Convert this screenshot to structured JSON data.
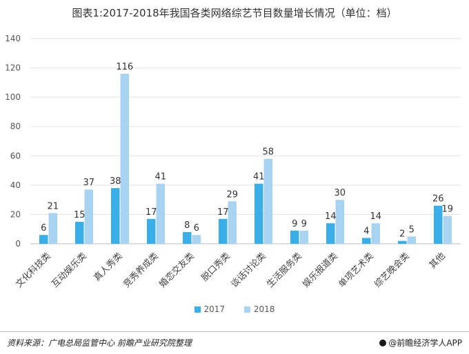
{
  "title": "图表1:2017-2018年我国各类网络综艺节目数量增长情况（单位：档）",
  "chart_data": {
    "type": "bar",
    "categories": [
      "文化科技类",
      "互动娱乐类",
      "真人秀类",
      "竞秀养成类",
      "婚恋交友类",
      "脱口秀类",
      "谈话讨论类",
      "生活服务类",
      "娱乐报道类",
      "单项艺术类",
      "综艺晚会类",
      "其他"
    ],
    "series": [
      {
        "name": "2017",
        "values": [
          6,
          15,
          38,
          17,
          8,
          17,
          41,
          9,
          14,
          4,
          2,
          26
        ],
        "color": "#3aaee8"
      },
      {
        "name": "2018",
        "values": [
          21,
          37,
          116,
          41,
          6,
          29,
          58,
          9,
          30,
          14,
          5,
          19
        ],
        "color": "#a9d4f1"
      }
    ],
    "ylim": [
      0,
      140
    ],
    "yticks": [
      0,
      20,
      40,
      60,
      80,
      100,
      120,
      140
    ],
    "grid": true,
    "legend_position": "bottom"
  },
  "footer": {
    "source": "资料来源：广电总局监管中心 前瞻产业研究院整理",
    "brand": "@前瞻经济学人APP"
  }
}
